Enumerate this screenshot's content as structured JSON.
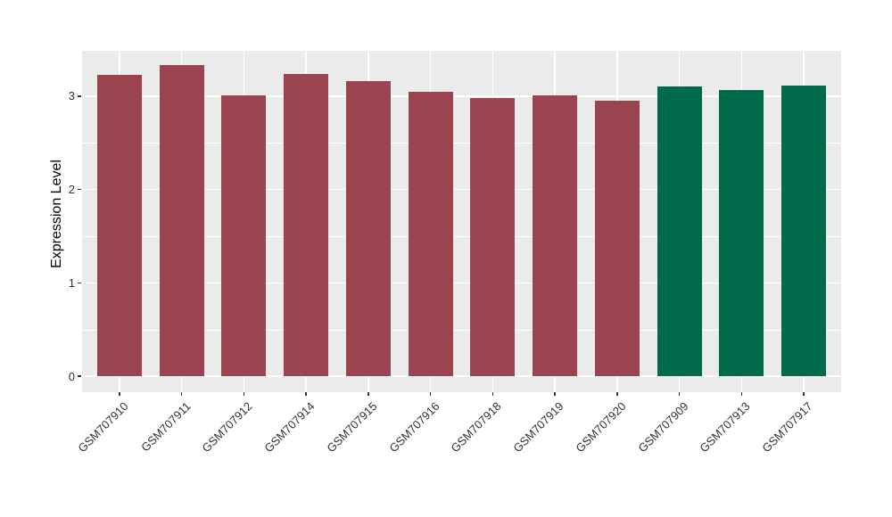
{
  "chart_data": {
    "type": "bar",
    "title": "",
    "xlabel": "",
    "ylabel": "Expression Level",
    "categories": [
      "GSM707910",
      "GSM707911",
      "GSM707912",
      "GSM707914",
      "GSM707915",
      "GSM707916",
      "GSM707918",
      "GSM707919",
      "GSM707920",
      "GSM707909",
      "GSM707913",
      "GSM707917"
    ],
    "values": [
      3.23,
      3.33,
      3.01,
      3.24,
      3.16,
      3.05,
      2.98,
      3.01,
      2.95,
      3.1,
      3.07,
      3.11
    ],
    "bar_colors": [
      "#9C4350",
      "#9C4350",
      "#9C4350",
      "#9C4350",
      "#9C4350",
      "#9C4350",
      "#9C4350",
      "#9C4350",
      "#9C4350",
      "#006B4B",
      "#006B4B",
      "#006B4B"
    ],
    "group_colors": {
      "maroon": "#9C4350",
      "green": "#006B4B"
    },
    "yticks": [
      0,
      1,
      2,
      3
    ],
    "yticks_minor": [
      0.5,
      1.5,
      2.5
    ],
    "ylim": [
      -0.17,
      3.49
    ],
    "grid": "on",
    "legend": "none",
    "panel_bg": "#EBEBEB",
    "grid_color": "#FFFFFF"
  }
}
